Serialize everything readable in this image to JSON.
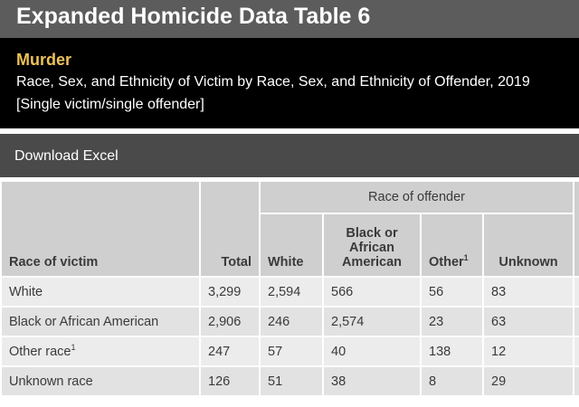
{
  "title": "Expanded Homicide Data Table 6",
  "subject": "Murder",
  "description": "Race, Sex, and Ethnicity of Victim by Race, Sex, and Ethnicity of Offender, 2019",
  "note": "[Single victim/single offender]",
  "download_label": "Download Excel",
  "table": {
    "group_header": "Race of offender",
    "col_victim": "Race of victim",
    "col_total": "Total",
    "col_white": "White",
    "col_black_line1": "Black or",
    "col_black_line2": "African",
    "col_black_line3": "American",
    "col_other": "Other",
    "col_other_sup": "1",
    "col_unknown": "Unknown",
    "rows": [
      {
        "label": "White",
        "sup": "",
        "total": "3,299",
        "white": "2,594",
        "black": "566",
        "other": "56",
        "unknown": "83"
      },
      {
        "label": "Black or African American",
        "sup": "",
        "total": "2,906",
        "white": "246",
        "black": "2,574",
        "other": "23",
        "unknown": "63"
      },
      {
        "label": "Other race",
        "sup": "1",
        "total": "247",
        "white": "57",
        "black": "40",
        "other": "138",
        "unknown": "12"
      },
      {
        "label": "Unknown race",
        "sup": "",
        "total": "126",
        "white": "51",
        "black": "38",
        "other": "8",
        "unknown": "29"
      }
    ]
  },
  "colors": {
    "title_bar": "#5c5c5c",
    "header_bg": "#000000",
    "subject": "#ecc15a",
    "download_bar": "#4a4a4a",
    "table_header": "#cfcfcf",
    "table_cell": "#ececec"
  }
}
